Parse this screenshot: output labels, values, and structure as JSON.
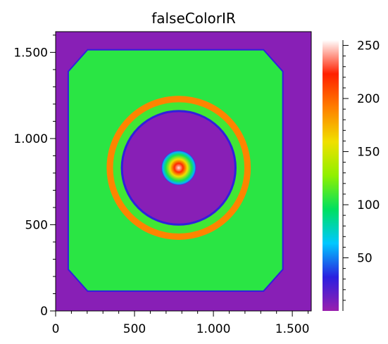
{
  "chart_data": {
    "type": "heatmap",
    "title": "falseColorIR",
    "xlabel": "",
    "ylabel": "",
    "xlim": [
      0,
      1620
    ],
    "ylim": [
      0,
      1620
    ],
    "x_ticks": [
      {
        "value": 0,
        "label": "0"
      },
      {
        "value": 500,
        "label": "500"
      },
      {
        "value": 1000,
        "label": "1.000"
      },
      {
        "value": 1500,
        "label": "1.500"
      }
    ],
    "y_ticks": [
      {
        "value": 0,
        "label": "0"
      },
      {
        "value": 500,
        "label": "500"
      },
      {
        "value": 1000,
        "label": "1.000"
      },
      {
        "value": 1500,
        "label": "1.500"
      }
    ],
    "colorbar": {
      "range": [
        0,
        255
      ],
      "ticks": [
        {
          "value": 50,
          "label": "50"
        },
        {
          "value": 100,
          "label": "100"
        },
        {
          "value": 150,
          "label": "150"
        },
        {
          "value": 200,
          "label": "200"
        },
        {
          "value": 250,
          "label": "250"
        }
      ],
      "colormap": [
        "#9a1fae",
        "#2a1fe0",
        "#00c8ff",
        "#00e060",
        "#90f000",
        "#f0e000",
        "#ff8000",
        "#ff2000",
        "#ffffff"
      ]
    },
    "features": {
      "background_value": 5,
      "plate": {
        "x_range": [
          80,
          1440
        ],
        "y_range": [
          115,
          1515
        ],
        "value": 105
      },
      "outer_ring": {
        "center": [
          780,
          830
        ],
        "radius": 430,
        "value": 190
      },
      "inner_dark_disc": {
        "center": [
          780,
          830
        ],
        "radius": 360,
        "value": 5
      },
      "center_spot": {
        "center": [
          780,
          830
        ],
        "radius": 110,
        "peak_value": 250
      }
    }
  }
}
